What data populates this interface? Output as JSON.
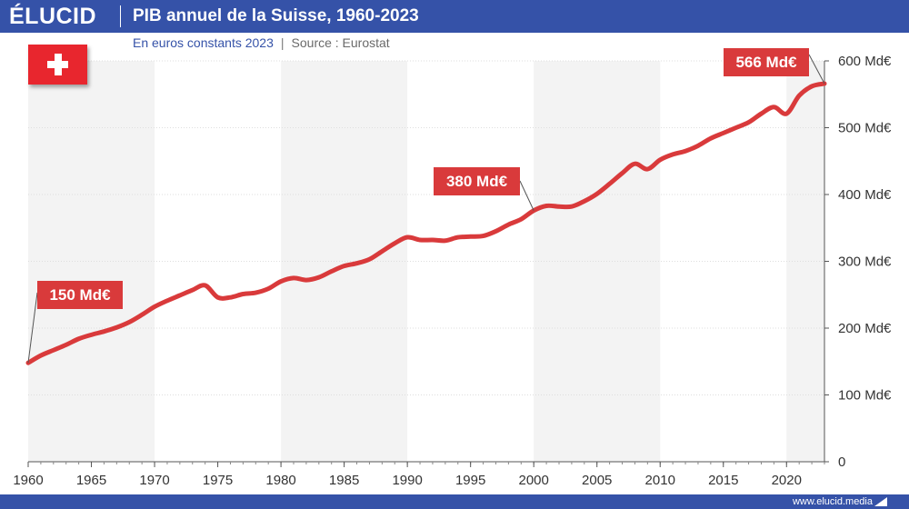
{
  "header": {
    "brand": "ÉLUCID",
    "title": "PIB annuel de la Suisse, 1960-2023"
  },
  "subtitle": {
    "units": "En euros constants 2023",
    "separator": "|",
    "source": "Source : Eurostat"
  },
  "footer": {
    "url": "www.elucid.media"
  },
  "icons": {
    "flag": "swiss-flag-icon",
    "footer_mark": "elucid-arrow-icon"
  },
  "colors": {
    "header_blue": "#3552a8",
    "line_red": "#d93a3b",
    "callout_red": "#d93a3b",
    "band_gray": "#f3f3f3"
  },
  "chart_data": {
    "type": "line",
    "title": "PIB annuel de la Suisse, 1960-2023",
    "subtitle": "En euros constants 2023",
    "xlabel": "",
    "ylabel": "",
    "xlim": [
      1960,
      2023
    ],
    "ylim": [
      0,
      600
    ],
    "x_ticks": [
      1960,
      1965,
      1970,
      1975,
      1980,
      1985,
      1990,
      1995,
      2000,
      2005,
      2010,
      2015,
      2020
    ],
    "x_tick_labels": [
      "1960",
      "1965",
      "1970",
      "1975",
      "1980",
      "1985",
      "1990",
      "1995",
      "2000",
      "2005",
      "2010",
      "2015",
      "2020"
    ],
    "y_ticks": [
      0,
      100,
      200,
      300,
      400,
      500,
      600
    ],
    "y_tick_labels": [
      "0",
      "100 Md€",
      "200 Md€",
      "300 Md€",
      "400 Md€",
      "500 Md€",
      "600 Md€"
    ],
    "y_axis_side": "right",
    "shaded_bands": [
      [
        1960,
        1970
      ],
      [
        1980,
        1990
      ],
      [
        2000,
        2010
      ],
      [
        2020,
        2023
      ]
    ],
    "grid": true,
    "legend": "none",
    "series": [
      {
        "color": "#d93a3b",
        "x": [
          1960,
          1961,
          1962,
          1963,
          1964,
          1965,
          1966,
          1967,
          1968,
          1969,
          1970,
          1971,
          1972,
          1973,
          1974,
          1975,
          1976,
          1977,
          1978,
          1979,
          1980,
          1981,
          1982,
          1983,
          1984,
          1985,
          1986,
          1987,
          1988,
          1989,
          1990,
          1991,
          1992,
          1993,
          1994,
          1995,
          1996,
          1997,
          1998,
          1999,
          2000,
          2001,
          2002,
          2003,
          2004,
          2005,
          2006,
          2007,
          2008,
          2009,
          2010,
          2011,
          2012,
          2013,
          2014,
          2015,
          2016,
          2017,
          2018,
          2019,
          2020,
          2021,
          2022,
          2023
        ],
        "values": [
          148,
          159,
          167,
          175,
          184,
          190,
          195,
          201,
          209,
          220,
          232,
          241,
          249,
          257,
          264,
          246,
          246,
          251,
          253,
          259,
          270,
          275,
          272,
          276,
          285,
          293,
          297,
          303,
          315,
          327,
          336,
          332,
          332,
          331,
          336,
          337,
          338,
          345,
          355,
          363,
          376,
          383,
          382,
          382,
          390,
          401,
          416,
          432,
          446,
          438,
          452,
          460,
          465,
          473,
          484,
          492,
          500,
          508,
          521,
          531,
          521,
          548,
          562,
          566
        ]
      }
    ],
    "annotations": [
      {
        "x": 1960,
        "y": 148,
        "text": "150 Md€"
      },
      {
        "x": 2000,
        "y": 376,
        "text": "380 Md€"
      },
      {
        "x": 2023,
        "y": 566,
        "text": "566 Md€"
      }
    ]
  }
}
